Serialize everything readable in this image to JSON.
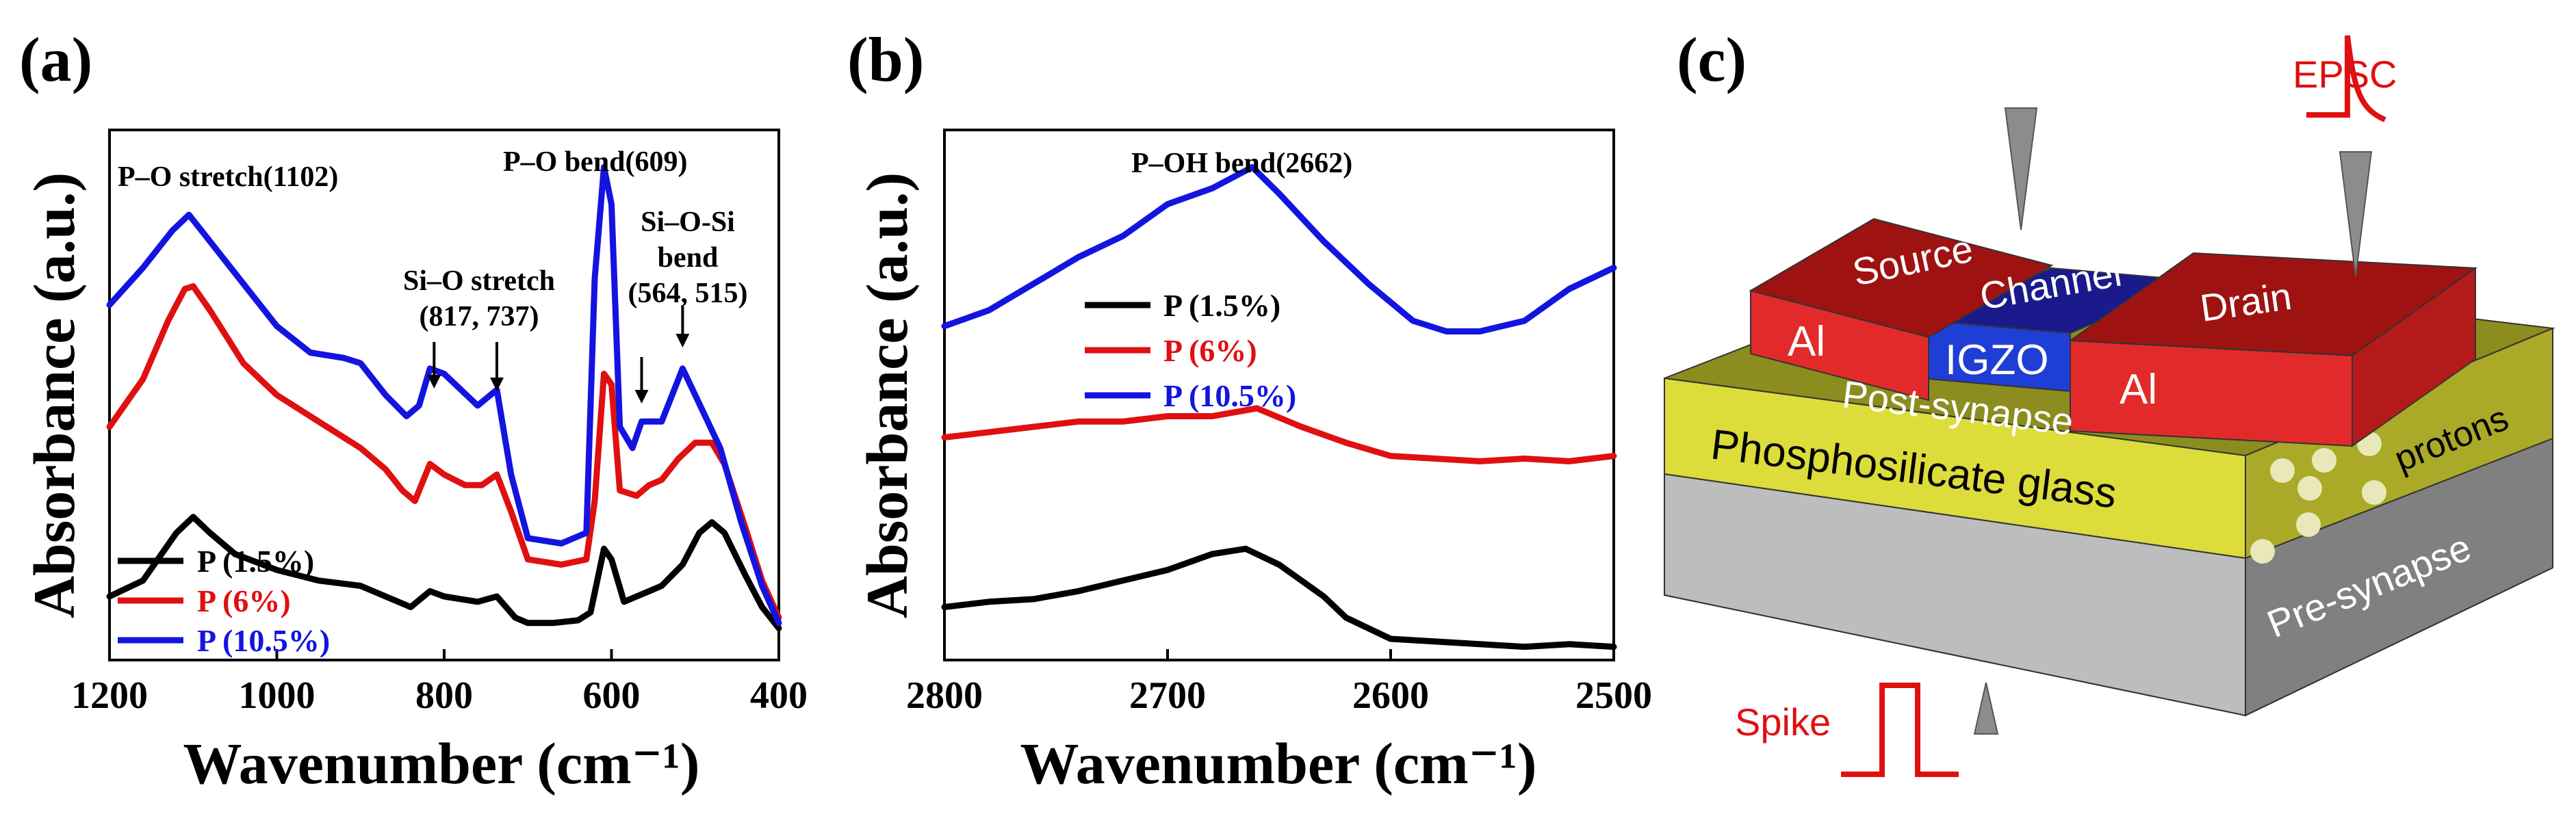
{
  "chart_data": [
    {
      "panel": "(a)",
      "type": "line",
      "title": "",
      "xlabel": "Wavenumber (cm⁻¹)",
      "ylabel": "Absorbance (a.u.)",
      "xlim": [
        1200,
        400
      ],
      "ylim": [
        0,
        1
      ],
      "x_ticks": [
        1200,
        1000,
        800,
        600,
        400
      ],
      "x_tick_labels": [
        "1200",
        "1000",
        "800",
        "600",
        "400"
      ],
      "grid": false,
      "legend": "bottom-left",
      "annotations": [
        {
          "text": "P–O stretch(1102)"
        },
        {
          "text": "P–O bend(609)"
        },
        {
          "text": "Si–O stretch"
        },
        {
          "text": "(817, 737)"
        },
        {
          "text": "Si–O-Si"
        },
        {
          "text": "bend"
        },
        {
          "text": "(564, 515)"
        }
      ],
      "arrow_x": [
        812,
        737,
        564,
        515
      ],
      "series": [
        {
          "name": "P (1.5%)",
          "color": "#000000",
          "points": [
            [
              1200,
              0.12
            ],
            [
              1160,
              0.15
            ],
            [
              1120,
              0.24
            ],
            [
              1100,
              0.27
            ],
            [
              1080,
              0.24
            ],
            [
              1050,
              0.2
            ],
            [
              1000,
              0.17
            ],
            [
              950,
              0.15
            ],
            [
              900,
              0.14
            ],
            [
              870,
              0.12
            ],
            [
              840,
              0.1
            ],
            [
              817,
              0.13
            ],
            [
              800,
              0.12
            ],
            [
              780,
              0.115
            ],
            [
              760,
              0.11
            ],
            [
              737,
              0.12
            ],
            [
              715,
              0.08
            ],
            [
              700,
              0.07
            ],
            [
              670,
              0.07
            ],
            [
              640,
              0.075
            ],
            [
              625,
              0.09
            ],
            [
              609,
              0.21
            ],
            [
              600,
              0.19
            ],
            [
              585,
              0.11
            ],
            [
              570,
              0.12
            ],
            [
              555,
              0.13
            ],
            [
              540,
              0.14
            ],
            [
              515,
              0.18
            ],
            [
              495,
              0.24
            ],
            [
              480,
              0.26
            ],
            [
              465,
              0.24
            ],
            [
              440,
              0.16
            ],
            [
              420,
              0.1
            ],
            [
              400,
              0.06
            ]
          ]
        },
        {
          "name": "P (6%)",
          "color": "#e01010",
          "points": [
            [
              1200,
              0.44
            ],
            [
              1160,
              0.53
            ],
            [
              1130,
              0.64
            ],
            [
              1110,
              0.7
            ],
            [
              1100,
              0.705
            ],
            [
              1080,
              0.66
            ],
            [
              1040,
              0.56
            ],
            [
              1000,
              0.5
            ],
            [
              950,
              0.45
            ],
            [
              900,
              0.4
            ],
            [
              870,
              0.36
            ],
            [
              850,
              0.32
            ],
            [
              835,
              0.3
            ],
            [
              817,
              0.37
            ],
            [
              800,
              0.35
            ],
            [
              775,
              0.33
            ],
            [
              755,
              0.33
            ],
            [
              737,
              0.35
            ],
            [
              720,
              0.28
            ],
            [
              700,
              0.19
            ],
            [
              660,
              0.18
            ],
            [
              630,
              0.19
            ],
            [
              620,
              0.3
            ],
            [
              609,
              0.54
            ],
            [
              600,
              0.52
            ],
            [
              590,
              0.32
            ],
            [
              570,
              0.31
            ],
            [
              555,
              0.33
            ],
            [
              540,
              0.34
            ],
            [
              520,
              0.38
            ],
            [
              500,
              0.41
            ],
            [
              480,
              0.41
            ],
            [
              465,
              0.37
            ],
            [
              440,
              0.25
            ],
            [
              420,
              0.15
            ],
            [
              400,
              0.08
            ]
          ]
        },
        {
          "name": "P (10.5%)",
          "color": "#1414e0",
          "points": [
            [
              1200,
              0.67
            ],
            [
              1160,
              0.74
            ],
            [
              1125,
              0.81
            ],
            [
              1105,
              0.84
            ],
            [
              1085,
              0.8
            ],
            [
              1040,
              0.71
            ],
            [
              1000,
              0.63
            ],
            [
              960,
              0.58
            ],
            [
              920,
              0.57
            ],
            [
              900,
              0.56
            ],
            [
              870,
              0.5
            ],
            [
              845,
              0.46
            ],
            [
              830,
              0.48
            ],
            [
              817,
              0.55
            ],
            [
              800,
              0.54
            ],
            [
              780,
              0.51
            ],
            [
              760,
              0.48
            ],
            [
              737,
              0.51
            ],
            [
              720,
              0.35
            ],
            [
              700,
              0.23
            ],
            [
              660,
              0.22
            ],
            [
              630,
              0.24
            ],
            [
              620,
              0.72
            ],
            [
              609,
              0.93
            ],
            [
              600,
              0.86
            ],
            [
              590,
              0.44
            ],
            [
              575,
              0.4
            ],
            [
              564,
              0.45
            ],
            [
              540,
              0.45
            ],
            [
              515,
              0.55
            ],
            [
              500,
              0.5
            ],
            [
              470,
              0.4
            ],
            [
              445,
              0.26
            ],
            [
              420,
              0.14
            ],
            [
              400,
              0.07
            ]
          ]
        }
      ]
    },
    {
      "panel": "(b)",
      "type": "line",
      "title": "",
      "xlabel": "Wavenumber (cm⁻¹)",
      "ylabel": "Absorbance (a.u.)",
      "xlim": [
        2800,
        2500
      ],
      "ylim": [
        0,
        1
      ],
      "x_ticks": [
        2800,
        2700,
        2600,
        2500
      ],
      "x_tick_labels": [
        "2800",
        "2700",
        "2600",
        "2500"
      ],
      "grid": false,
      "legend": "upper-left",
      "annotations": [
        {
          "text": "P–OH bend(2662)"
        }
      ],
      "series": [
        {
          "name": "P (1.5%)",
          "color": "#000000",
          "points": [
            [
              2800,
              0.1
            ],
            [
              2780,
              0.11
            ],
            [
              2760,
              0.115
            ],
            [
              2740,
              0.13
            ],
            [
              2720,
              0.15
            ],
            [
              2700,
              0.17
            ],
            [
              2680,
              0.2
            ],
            [
              2665,
              0.21
            ],
            [
              2650,
              0.18
            ],
            [
              2630,
              0.12
            ],
            [
              2620,
              0.08
            ],
            [
              2600,
              0.04
            ],
            [
              2580,
              0.035
            ],
            [
              2560,
              0.03
            ],
            [
              2540,
              0.025
            ],
            [
              2520,
              0.03
            ],
            [
              2500,
              0.025
            ]
          ]
        },
        {
          "name": "P (6%)",
          "color": "#e01010",
          "points": [
            [
              2800,
              0.42
            ],
            [
              2780,
              0.43
            ],
            [
              2760,
              0.44
            ],
            [
              2740,
              0.45
            ],
            [
              2720,
              0.45
            ],
            [
              2700,
              0.46
            ],
            [
              2680,
              0.46
            ],
            [
              2660,
              0.475
            ],
            [
              2640,
              0.44
            ],
            [
              2620,
              0.41
            ],
            [
              2600,
              0.385
            ],
            [
              2580,
              0.38
            ],
            [
              2560,
              0.375
            ],
            [
              2540,
              0.38
            ],
            [
              2520,
              0.375
            ],
            [
              2500,
              0.385
            ]
          ]
        },
        {
          "name": "P (10.5%)",
          "color": "#1414e0",
          "points": [
            [
              2800,
              0.63
            ],
            [
              2780,
              0.66
            ],
            [
              2760,
              0.71
            ],
            [
              2740,
              0.76
            ],
            [
              2720,
              0.8
            ],
            [
              2700,
              0.86
            ],
            [
              2680,
              0.89
            ],
            [
              2662,
              0.93
            ],
            [
              2650,
              0.88
            ],
            [
              2630,
              0.79
            ],
            [
              2610,
              0.71
            ],
            [
              2590,
              0.64
            ],
            [
              2575,
              0.62
            ],
            [
              2560,
              0.62
            ],
            [
              2540,
              0.64
            ],
            [
              2520,
              0.7
            ],
            [
              2500,
              0.74
            ]
          ]
        }
      ]
    }
  ],
  "panel_c": {
    "letter": "(c)",
    "epsc_label": "EPSC",
    "spike_label": "Spike",
    "source_label": "Source",
    "drain_label": "Drain",
    "channel_label": "Channel",
    "igzo_label": "IGZO",
    "al_left_label": "Al",
    "al_right_label": "Al",
    "post_synapse_label": "Post-synapse",
    "glass_label": "Phosphosilicate glass",
    "protons_label": "protons",
    "pre_synapse_label": "Pre-synapse",
    "colors": {
      "al_front": "#e32a2a",
      "al_top": "#9e1212",
      "al_side": "#b51a1a",
      "igzo_front": "#1f3ed6",
      "igzo_top": "#1a1a8c",
      "glass_front": "#dcdc3a",
      "glass_top": "#8c8c1f",
      "glass_side": "#aaaa28",
      "substrate_front": "#bdbdbd",
      "substrate_side": "#808080",
      "probe": "#8c8c8c",
      "signal": "#e01010",
      "proton": "#e8e8b8"
    }
  }
}
